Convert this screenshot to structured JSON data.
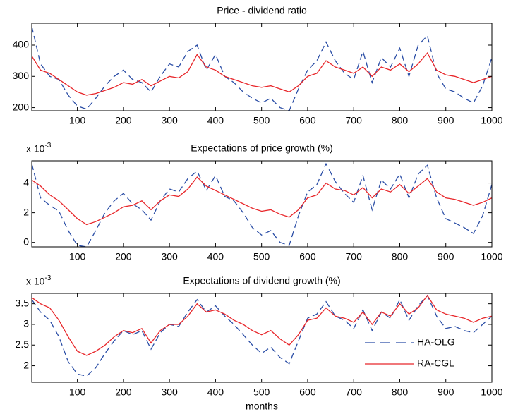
{
  "chart_data": [
    {
      "type": "line",
      "title": "Price - dividend ratio",
      "x": [
        1,
        20,
        40,
        60,
        80,
        100,
        120,
        140,
        160,
        180,
        200,
        220,
        240,
        260,
        280,
        300,
        320,
        340,
        360,
        380,
        400,
        420,
        440,
        460,
        480,
        500,
        520,
        540,
        560,
        580,
        600,
        620,
        640,
        660,
        680,
        700,
        720,
        740,
        760,
        780,
        800,
        820,
        840,
        860,
        880,
        900,
        920,
        940,
        960,
        980,
        1000
      ],
      "series": [
        {
          "name": "HA-OLG",
          "color": "#2b4ea6",
          "dashed": true,
          "values": [
            460,
            340,
            300,
            290,
            240,
            205,
            195,
            230,
            270,
            300,
            320,
            290,
            280,
            250,
            300,
            340,
            330,
            380,
            400,
            320,
            370,
            300,
            280,
            250,
            230,
            215,
            230,
            200,
            190,
            260,
            320,
            350,
            410,
            350,
            310,
            290,
            380,
            280,
            360,
            330,
            390,
            300,
            400,
            430,
            310,
            260,
            250,
            230,
            215,
            270,
            360
          ]
        },
        {
          "name": "RA-CGL",
          "color": "#e8262a",
          "dashed": false,
          "values": [
            365,
            320,
            310,
            290,
            270,
            250,
            240,
            245,
            255,
            265,
            280,
            275,
            290,
            270,
            285,
            300,
            295,
            315,
            370,
            330,
            320,
            300,
            290,
            280,
            270,
            265,
            270,
            260,
            250,
            270,
            300,
            310,
            350,
            330,
            320,
            310,
            330,
            300,
            330,
            320,
            340,
            315,
            340,
            375,
            320,
            305,
            300,
            290,
            280,
            290,
            300
          ]
        }
      ],
      "xlim": [
        1,
        1000
      ],
      "xticks": [
        100,
        200,
        300,
        400,
        500,
        600,
        700,
        800,
        900,
        1000
      ],
      "ylim": [
        190,
        470
      ],
      "yticks": [
        200,
        300,
        400
      ]
    },
    {
      "type": "line",
      "title": "Expectations of price growth (%)",
      "multiplier": {
        "base": "x 10",
        "exponent": "-3"
      },
      "x": [
        1,
        20,
        40,
        60,
        80,
        100,
        120,
        140,
        160,
        180,
        200,
        220,
        240,
        260,
        280,
        300,
        320,
        340,
        360,
        380,
        400,
        420,
        440,
        460,
        480,
        500,
        520,
        540,
        560,
        580,
        600,
        620,
        640,
        660,
        680,
        700,
        720,
        740,
        760,
        780,
        800,
        820,
        840,
        860,
        880,
        900,
        920,
        940,
        960,
        980,
        1000
      ],
      "series": [
        {
          "name": "HA-OLG",
          "color": "#2b4ea6",
          "dashed": true,
          "values": [
            5.3,
            3.0,
            2.5,
            2.1,
            0.8,
            -0.2,
            -0.3,
            0.8,
            2.0,
            2.8,
            3.3,
            2.6,
            2.2,
            1.5,
            2.8,
            3.6,
            3.4,
            4.3,
            4.8,
            3.5,
            4.5,
            3.1,
            2.8,
            2.0,
            1.0,
            0.5,
            0.8,
            0.0,
            -0.2,
            1.8,
            3.4,
            3.9,
            5.3,
            4.1,
            3.3,
            2.7,
            4.5,
            2.2,
            4.2,
            3.6,
            4.6,
            3.0,
            4.6,
            5.2,
            3.0,
            1.6,
            1.3,
            1.0,
            0.6,
            1.8,
            3.9
          ]
        },
        {
          "name": "RA-CGL",
          "color": "#e8262a",
          "dashed": false,
          "values": [
            4.2,
            3.8,
            3.2,
            2.8,
            2.2,
            1.6,
            1.2,
            1.4,
            1.7,
            2.0,
            2.4,
            2.5,
            2.8,
            2.2,
            2.8,
            3.2,
            3.1,
            3.6,
            4.4,
            3.8,
            3.5,
            3.2,
            2.9,
            2.6,
            2.3,
            2.1,
            2.2,
            1.9,
            1.7,
            2.2,
            3.0,
            3.2,
            4.0,
            3.6,
            3.5,
            3.2,
            3.7,
            3.0,
            3.6,
            3.4,
            3.9,
            3.3,
            3.8,
            4.3,
            3.4,
            3.0,
            2.9,
            2.7,
            2.5,
            2.7,
            3.0
          ]
        }
      ],
      "xlim": [
        1,
        1000
      ],
      "xticks": [
        100,
        200,
        300,
        400,
        500,
        600,
        700,
        800,
        900,
        1000
      ],
      "ylim": [
        -0.3,
        5.5
      ],
      "yticks": [
        0,
        2,
        4
      ]
    },
    {
      "type": "line",
      "title": "Expectations of dividend growth (%)",
      "x_label": "months",
      "multiplier": {
        "base": "x 10",
        "exponent": "-3"
      },
      "legend": "lower right",
      "x": [
        1,
        20,
        40,
        60,
        80,
        100,
        120,
        140,
        160,
        180,
        200,
        220,
        240,
        260,
        280,
        300,
        320,
        340,
        360,
        380,
        400,
        420,
        440,
        460,
        480,
        500,
        520,
        540,
        560,
        580,
        600,
        620,
        640,
        660,
        680,
        700,
        720,
        740,
        760,
        780,
        800,
        820,
        840,
        860,
        880,
        900,
        920,
        940,
        960,
        980,
        1000
      ],
      "series": [
        {
          "name": "HA-OLG",
          "color": "#2b4ea6",
          "dashed": true,
          "values": [
            3.6,
            3.3,
            3.1,
            2.7,
            2.1,
            1.8,
            1.75,
            1.95,
            2.3,
            2.6,
            2.85,
            2.75,
            2.85,
            2.4,
            2.8,
            3.0,
            2.95,
            3.3,
            3.6,
            3.3,
            3.45,
            3.2,
            3.0,
            2.75,
            2.5,
            2.3,
            2.45,
            2.2,
            2.05,
            2.6,
            3.15,
            3.25,
            3.55,
            3.2,
            3.1,
            2.9,
            3.35,
            2.85,
            3.3,
            3.15,
            3.6,
            3.1,
            3.45,
            3.7,
            3.2,
            2.9,
            2.95,
            2.85,
            2.8,
            3.0,
            3.2
          ]
        },
        {
          "name": "RA-CGL",
          "color": "#e8262a",
          "dashed": false,
          "values": [
            3.65,
            3.5,
            3.4,
            3.1,
            2.7,
            2.35,
            2.25,
            2.35,
            2.5,
            2.7,
            2.85,
            2.8,
            2.9,
            2.55,
            2.85,
            3.0,
            3.0,
            3.2,
            3.5,
            3.3,
            3.35,
            3.25,
            3.1,
            3.0,
            2.85,
            2.75,
            2.85,
            2.65,
            2.5,
            2.75,
            3.1,
            3.15,
            3.4,
            3.2,
            3.15,
            3.05,
            3.3,
            3.0,
            3.3,
            3.2,
            3.5,
            3.25,
            3.4,
            3.7,
            3.35,
            3.25,
            3.2,
            3.15,
            3.05,
            3.15,
            3.2
          ]
        }
      ],
      "xlim": [
        1,
        1000
      ],
      "xticks": [
        100,
        200,
        300,
        400,
        500,
        600,
        700,
        800,
        900,
        1000
      ],
      "ylim": [
        1.6,
        3.75
      ],
      "yticks": [
        2,
        {
          "value": 2.5,
          "label": "2.5"
        },
        3,
        {
          "value": 3.5,
          "label": "3.5"
        }
      ]
    }
  ]
}
